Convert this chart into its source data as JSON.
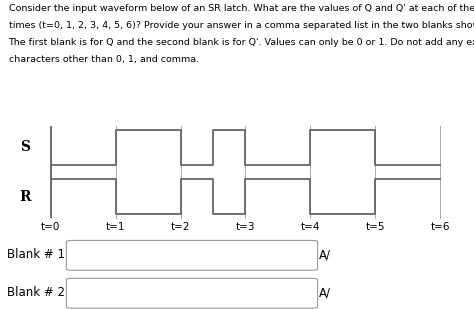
{
  "title_lines": [
    "Consider the input waveform below of an SR latch. What are the values of Q and Q' at each of the indicated",
    "times (t=0, 1, 2, 3, 4, 5, 6)? Provide your answer in a comma separated list in the two blanks shown below.",
    "The first blank is for Q and the second blank is for Q'. Values can only be 0 or 1. Do not add any extraneous",
    "characters other than 0, 1, and comma."
  ],
  "S_x": [
    0,
    1,
    1,
    2,
    2,
    2.5,
    2.5,
    3,
    3,
    4,
    4,
    5,
    5,
    6
  ],
  "S_y": [
    0,
    0,
    1,
    1,
    0,
    0,
    1,
    1,
    0,
    0,
    1,
    1,
    0,
    0
  ],
  "R_x": [
    0,
    1,
    1,
    2,
    2,
    2.5,
    2.5,
    3,
    3,
    4,
    4,
    5,
    5,
    6
  ],
  "R_y": [
    1,
    1,
    0,
    0,
    1,
    1,
    0,
    0,
    1,
    1,
    0,
    0,
    1,
    1
  ],
  "time_labels": [
    "t=0",
    "t=1",
    "t=2",
    "t=3",
    "t=4",
    "t=5",
    "t=6"
  ],
  "S_label": "S",
  "R_label": "R",
  "blank1_label": "Blank # 1",
  "blank2_label": "Blank # 2",
  "waveform_color": "#666666",
  "grid_color": "#aaaaaa",
  "bg_color": "#ffffff",
  "text_color": "#000000",
  "title_fontsize": 6.8,
  "label_fontsize": 10,
  "tick_fontsize": 7.5,
  "blank_fontsize": 8.5
}
